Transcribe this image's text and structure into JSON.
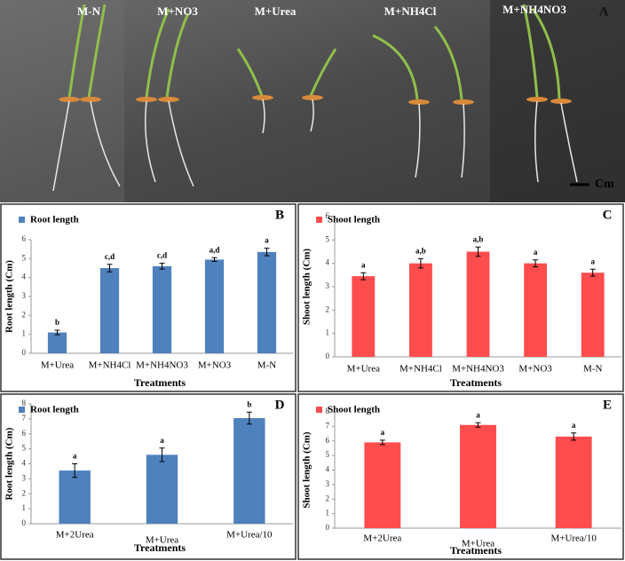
{
  "panel_a": {
    "panel_label": "A",
    "treatments": [
      "M-N",
      "M+NO3",
      "M+Urea",
      "M+NH4Cl",
      "M+NH4NO3"
    ],
    "scale_label": "Cm"
  },
  "chart_data": [
    {
      "type": "bar",
      "panel_label": "B",
      "categories": [
        "M+Urea",
        "M+NH4Cl",
        "M+NH4NO3",
        "M+NO3",
        "M-N"
      ],
      "x_label": "Treatments",
      "y_label": "Root length (Cm)",
      "series": [
        {
          "name": "Root length",
          "color": "#4f81bd",
          "values": [
            1.1,
            4.5,
            4.6,
            4.95,
            5.35
          ],
          "errors": [
            0.12,
            0.2,
            0.15,
            0.1,
            0.2
          ],
          "letters": [
            "b",
            "c,d",
            "c,d",
            "a,d",
            "a"
          ]
        }
      ],
      "ylim": [
        0,
        6
      ],
      "yticks": [
        0,
        1,
        2,
        3,
        4,
        5,
        6
      ]
    },
    {
      "type": "bar",
      "panel_label": "C",
      "categories": [
        "M+Urea",
        "M+NH4Cl",
        "M+NH4NO3",
        "M+NO3",
        "M-N"
      ],
      "x_label": "Treatments",
      "y_label": "Shoot length (Cm)",
      "series": [
        {
          "name": "Shoot length",
          "color": "#ff4c4c",
          "values": [
            3.45,
            4.0,
            4.5,
            4.0,
            3.6
          ],
          "errors": [
            0.15,
            0.2,
            0.2,
            0.15,
            0.15
          ],
          "letters": [
            "a",
            "a,b",
            "a,b",
            "a",
            "a"
          ]
        }
      ],
      "ylim": [
        0,
        6
      ],
      "yticks": [
        0,
        1,
        2,
        3,
        4,
        5,
        6
      ]
    },
    {
      "type": "bar",
      "panel_label": "D",
      "categories": [
        "M+2Urea",
        "M+Urea",
        "M+Urea/10"
      ],
      "x_label": "Treatments",
      "y_label": "Root length (Cm)",
      "series": [
        {
          "name": "Root length",
          "color": "#4f81bd",
          "values": [
            3.55,
            4.6,
            7.05
          ],
          "errors": [
            0.45,
            0.45,
            0.4
          ],
          "letters": [
            "a",
            "a",
            "b"
          ]
        }
      ],
      "ylim": [
        0,
        8
      ],
      "yticks": [
        0,
        1,
        2,
        3,
        4,
        5,
        6,
        7,
        8
      ]
    },
    {
      "type": "bar",
      "panel_label": "E",
      "categories": [
        "M+2Urea",
        "M+Urea",
        "M+Urea/10"
      ],
      "x_label": "Treatments",
      "y_label": "Shoot length (Cm)",
      "series": [
        {
          "name": "Shoot length",
          "color": "#ff4c4c",
          "values": [
            5.9,
            7.1,
            6.3
          ],
          "errors": [
            0.15,
            0.15,
            0.25
          ],
          "letters": [
            "a",
            "a",
            "a"
          ]
        }
      ],
      "ylim": [
        0,
        8
      ],
      "yticks": [
        0,
        1,
        2,
        3,
        4,
        5,
        6,
        7,
        8
      ]
    }
  ]
}
